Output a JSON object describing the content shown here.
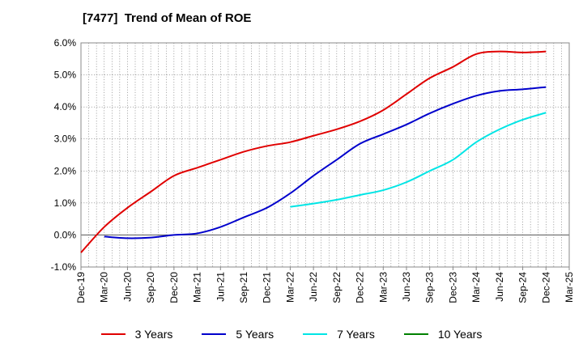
{
  "chart_data": {
    "type": "line",
    "title": "[7477]  Trend of Mean of ROE",
    "x_ticks": [
      "Dec-19",
      "Mar-20",
      "Jun-20",
      "Sep-20",
      "Dec-20",
      "Mar-21",
      "Jun-21",
      "Sep-21",
      "Dec-21",
      "Mar-22",
      "Jun-22",
      "Sep-22",
      "Dec-22",
      "Mar-23",
      "Jun-23",
      "Sep-23",
      "Dec-23",
      "Mar-24",
      "Jun-24",
      "Sep-24",
      "Dec-24",
      "Mar-25"
    ],
    "y_ticks": [
      "-1.0%",
      "0.0%",
      "1.0%",
      "2.0%",
      "3.0%",
      "4.0%",
      "5.0%",
      "6.0%"
    ],
    "ylim": [
      -1.0,
      6.0
    ],
    "grid": true,
    "legend_position": "bottom",
    "series": [
      {
        "name": "3 Years",
        "color": "#e00000",
        "x": [
          "Dec-19",
          "Mar-20",
          "Jun-20",
          "Sep-20",
          "Dec-20",
          "Mar-21",
          "Jun-21",
          "Sep-21",
          "Dec-21",
          "Mar-22",
          "Jun-22",
          "Sep-22",
          "Dec-22",
          "Mar-23",
          "Jun-23",
          "Sep-23",
          "Dec-23",
          "Mar-24",
          "Jun-24",
          "Sep-24",
          "Dec-24"
        ],
        "y": [
          -0.55,
          0.25,
          0.85,
          1.35,
          1.85,
          2.1,
          2.35,
          2.6,
          2.78,
          2.9,
          3.1,
          3.3,
          3.55,
          3.9,
          4.4,
          4.9,
          5.25,
          5.65,
          5.73,
          5.7,
          5.73
        ]
      },
      {
        "name": "5 Years",
        "color": "#0000cc",
        "x": [
          "Mar-20",
          "Jun-20",
          "Sep-20",
          "Dec-20",
          "Mar-21",
          "Jun-21",
          "Sep-21",
          "Dec-21",
          "Mar-22",
          "Jun-22",
          "Sep-22",
          "Dec-22",
          "Mar-23",
          "Jun-23",
          "Sep-23",
          "Dec-23",
          "Mar-24",
          "Jun-24",
          "Sep-24",
          "Dec-24"
        ],
        "y": [
          -0.05,
          -0.1,
          -0.08,
          0.0,
          0.05,
          0.25,
          0.55,
          0.85,
          1.3,
          1.85,
          2.35,
          2.85,
          3.15,
          3.45,
          3.8,
          4.1,
          4.35,
          4.5,
          4.55,
          4.62
        ]
      },
      {
        "name": "7 Years",
        "color": "#00e5e5",
        "x": [
          "Mar-22",
          "Jun-22",
          "Sep-22",
          "Dec-22",
          "Mar-23",
          "Jun-23",
          "Sep-23",
          "Dec-23",
          "Mar-24",
          "Jun-24",
          "Sep-24",
          "Dec-24"
        ],
        "y": [
          0.88,
          0.98,
          1.1,
          1.25,
          1.4,
          1.65,
          2.0,
          2.35,
          2.9,
          3.3,
          3.6,
          3.82
        ]
      },
      {
        "name": "10 Years",
        "color": "#008000",
        "x": [],
        "y": []
      }
    ]
  }
}
